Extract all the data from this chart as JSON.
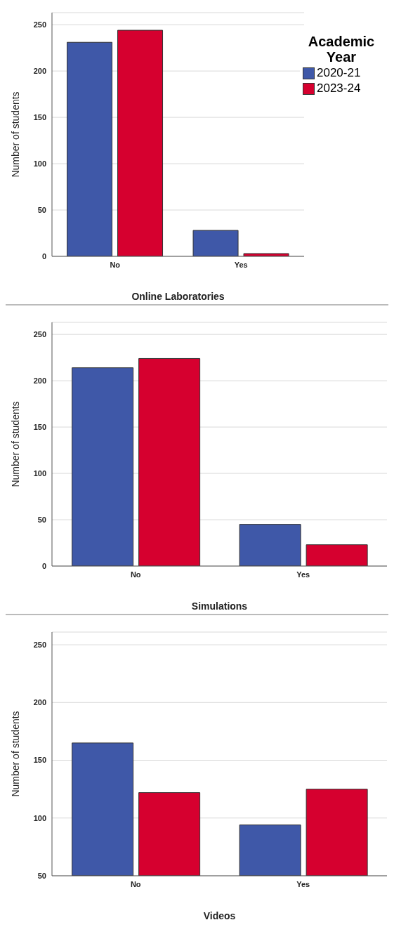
{
  "chart_data": [
    {
      "type": "bar",
      "xlabel": "Online Laboratories",
      "ylabel": "Number of students",
      "legend_title": "Academic Year",
      "categories": [
        "No",
        "Yes"
      ],
      "ylim": [
        0,
        263
      ],
      "yticks": [
        0,
        50,
        100,
        150,
        200,
        250
      ],
      "grid": "y",
      "legend": "top right",
      "series": [
        {
          "name": "2020-21",
          "color": "#3f58a8",
          "values": [
            231,
            28
          ]
        },
        {
          "name": "2023-24",
          "color": "#d6002f",
          "values": [
            244,
            3
          ]
        }
      ]
    },
    {
      "type": "bar",
      "xlabel": "Simulations",
      "ylabel": "Number of students",
      "categories": [
        "No",
        "Yes"
      ],
      "ylim": [
        0,
        263
      ],
      "yticks": [
        0,
        50,
        100,
        150,
        200,
        250
      ],
      "grid": "y",
      "series": [
        {
          "color": "#3f58a8",
          "values": [
            214,
            45
          ]
        },
        {
          "color": "#d6002f",
          "values": [
            224,
            23
          ]
        }
      ]
    },
    {
      "type": "bar",
      "xlabel": "Videos",
      "ylabel": "Number of students",
      "categories": [
        "No",
        "Yes"
      ],
      "ylim": [
        50,
        261
      ],
      "yticks": [
        50,
        100,
        150,
        200,
        250
      ],
      "grid": "y",
      "series": [
        {
          "color": "#3f58a8",
          "values": [
            165,
            94
          ]
        },
        {
          "color": "#d6002f",
          "values": [
            122,
            125
          ]
        }
      ]
    }
  ]
}
